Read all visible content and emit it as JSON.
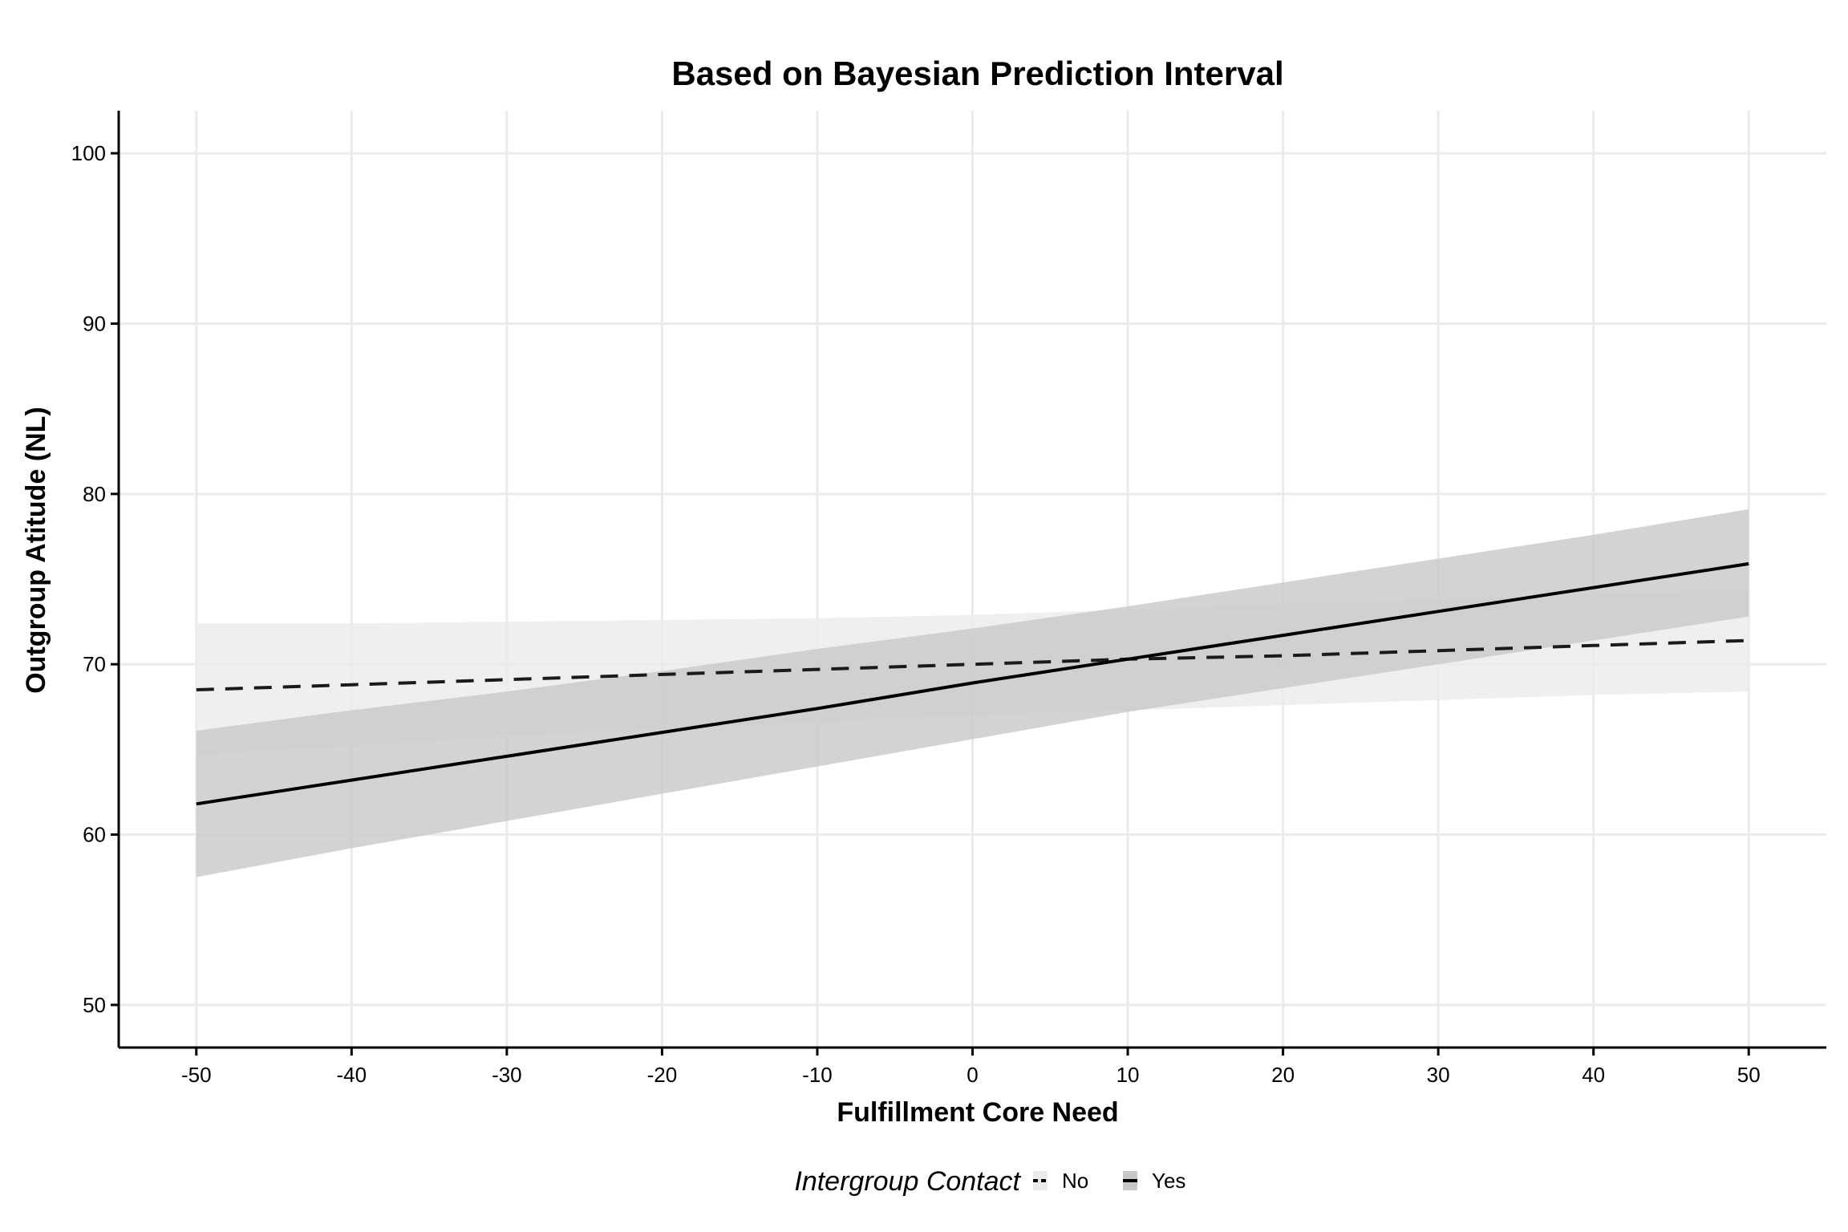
{
  "chart_data": {
    "type": "line",
    "title": "Based on Bayesian Prediction Interval",
    "xlabel": "Fulfillment Core Need",
    "ylabel": "Outgroup Atitude (NL)",
    "xlim": [
      -55,
      55
    ],
    "ylim": [
      47.5,
      102.5
    ],
    "x_ticks": [
      -50,
      -40,
      -30,
      -20,
      -10,
      0,
      10,
      20,
      30,
      40,
      50
    ],
    "y_ticks": [
      50,
      60,
      70,
      80,
      90,
      100
    ],
    "grid": true,
    "legend": {
      "title": "Intergroup Contact",
      "position": "bottom",
      "entries": [
        "No",
        "Yes"
      ]
    },
    "series": [
      {
        "name": "No",
        "line_style": "dashed",
        "band_color": "#ebebeb",
        "x": [
          -50,
          -40,
          -30,
          -20,
          -10,
          0,
          10,
          20,
          30,
          40,
          50
        ],
        "values": [
          68.5,
          68.8,
          69.1,
          69.4,
          69.7,
          70.0,
          70.3,
          70.5,
          70.8,
          71.1,
          71.4
        ],
        "lower": [
          64.7,
          65.2,
          65.8,
          66.2,
          66.6,
          67.0,
          67.3,
          67.6,
          67.9,
          68.2,
          68.4
        ],
        "upper": [
          72.4,
          72.4,
          72.5,
          72.6,
          72.7,
          72.9,
          73.2,
          73.5,
          73.8,
          74.1,
          74.4
        ]
      },
      {
        "name": "Yes",
        "line_style": "solid",
        "band_color": "#c8c8c8",
        "x": [
          -50,
          -40,
          -30,
          -20,
          -10,
          0,
          10,
          20,
          30,
          40,
          50
        ],
        "values": [
          61.8,
          63.2,
          64.6,
          66.0,
          67.4,
          68.9,
          70.3,
          71.7,
          73.1,
          74.5,
          75.9
        ],
        "lower": [
          57.5,
          59.2,
          60.8,
          62.4,
          64.0,
          65.6,
          67.2,
          68.6,
          70.0,
          71.4,
          72.8
        ],
        "upper": [
          66.1,
          67.3,
          68.4,
          69.6,
          70.9,
          72.1,
          73.4,
          74.8,
          76.2,
          77.6,
          79.1
        ]
      }
    ]
  }
}
